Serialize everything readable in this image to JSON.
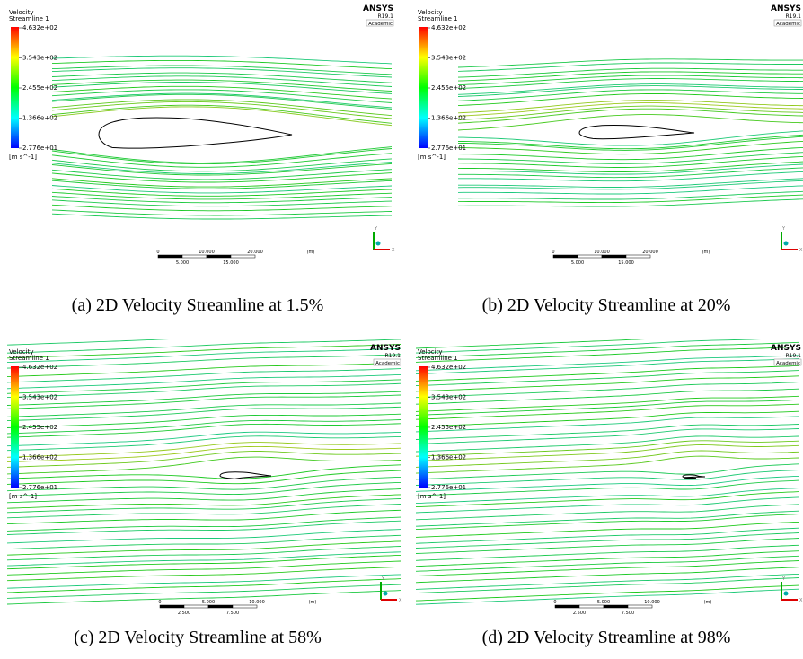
{
  "panels": [
    {
      "caption": "(a) 2D Velocity Streamline at 1.5%",
      "legend": {
        "title": "Velocity",
        "subtitle": "Streamline 1",
        "labels": [
          "4.632e+02",
          "3.543e+02",
          "2.455e+02",
          "1.366e+02",
          "2.776e+01"
        ],
        "unit": "[m s^-1]"
      },
      "logo": {
        "name": "ANSYS",
        "version": "R19.1",
        "license": "Academic"
      },
      "scale": {
        "top": [
          "0",
          "10.000",
          "20.000",
          "(m)"
        ],
        "bottom": [
          "5.000",
          "15.000"
        ]
      },
      "axes": [
        "Y",
        "X"
      ]
    },
    {
      "caption": "(b) 2D Velocity Streamline at 20%",
      "legend": {
        "title": "Velocity",
        "subtitle": "Streamline 1",
        "labels": [
          "4.632e+02",
          "3.543e+02",
          "2.455e+02",
          "1.366e+02",
          "2.776e+01"
        ],
        "unit": "[m s^-1]"
      },
      "logo": {
        "name": "ANSYS",
        "version": "R19.1",
        "license": "Academic"
      },
      "scale": {
        "top": [
          "0",
          "10.000",
          "20.000",
          "(m)"
        ],
        "bottom": [
          "5.000",
          "15.000"
        ]
      },
      "axes": [
        "Y",
        "X"
      ]
    },
    {
      "caption": "(c) 2D Velocity Streamline at 58%",
      "legend": {
        "title": "Velocity",
        "subtitle": "Streamline 1",
        "labels": [
          "4.632e+02",
          "3.543e+02",
          "2.455e+02",
          "1.366e+02",
          "2.776e+01"
        ],
        "unit": "[m s^-1]"
      },
      "logo": {
        "name": "ANSYS",
        "version": "R19.1",
        "license": "Academic"
      },
      "scale": {
        "top": [
          "0",
          "5.000",
          "10.000",
          "(m)"
        ],
        "bottom": [
          "2.500",
          "7.500"
        ]
      },
      "axes": [
        "Y",
        "X"
      ]
    },
    {
      "caption": "(d) 2D Velocity Streamline at 98%",
      "legend": {
        "title": "Velocity",
        "subtitle": "Streamline 1",
        "labels": [
          "4.632e+02",
          "3.543e+02",
          "2.455e+02",
          "1.366e+02",
          "2.776e+01"
        ],
        "unit": "[m s^-1]"
      },
      "logo": {
        "name": "ANSYS",
        "version": "R19.1",
        "license": "Academic"
      },
      "scale": {
        "top": [
          "0",
          "5.000",
          "10.000",
          "(m)"
        ],
        "bottom": [
          "2.500",
          "7.500"
        ]
      },
      "axes": [
        "Y",
        "X"
      ]
    }
  ]
}
